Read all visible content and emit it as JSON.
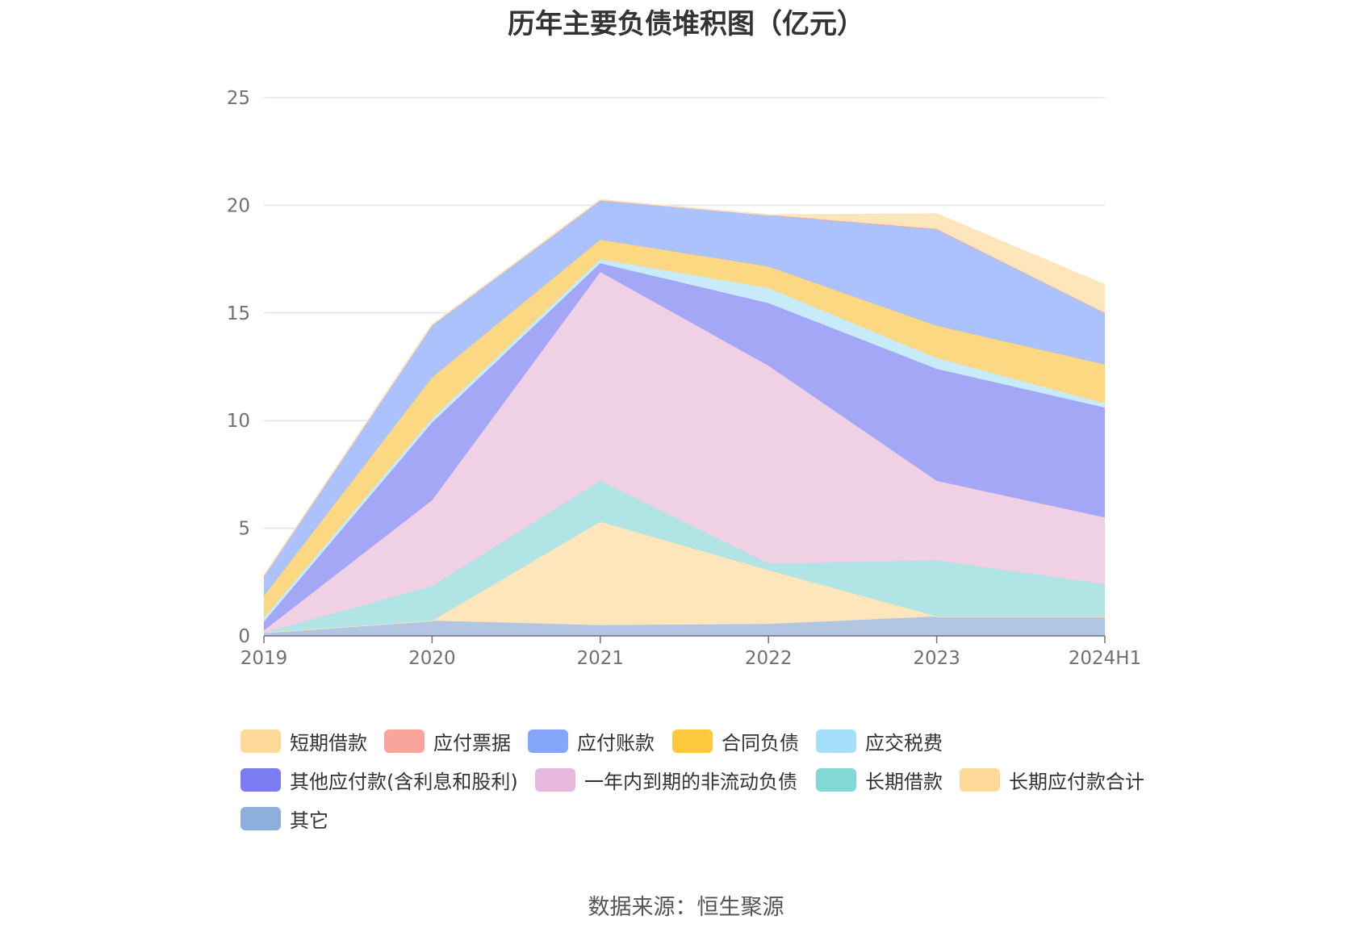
{
  "page": {
    "title": "历年主要负债堆积图（亿元）",
    "source": "数据来源：恒生聚源"
  },
  "chart_data": {
    "type": "area",
    "stacked": true,
    "title": "历年主要负债堆积图（亿元）",
    "categories": [
      "2019",
      "2020",
      "2021",
      "2022",
      "2023",
      "2024H1"
    ],
    "ylim": [
      0,
      25
    ],
    "yticks": [
      "0",
      "5",
      "10",
      "15",
      "20",
      "25"
    ],
    "grid": true,
    "legend_position": "bottom",
    "stack_order": [
      "其它",
      "短期借款",
      "长期借款",
      "一年内到期的非流动负债",
      "其他应付款(含利息和股利)",
      "应交税费",
      "合同负债",
      "应付账款",
      "应付票据",
      "长期应付款合计"
    ],
    "series": [
      {
        "name": "短期借款",
        "values": [
          0.0,
          0.0,
          4.8,
          2.5,
          0.0,
          0.0
        ],
        "color": "#fdd99a",
        "area_color": "#fde5b8"
      },
      {
        "name": "应付票据",
        "values": [
          0.05,
          0.05,
          0.05,
          0.0,
          0.0,
          0.0
        ],
        "color": "#f9a59b",
        "area_color": "#f9a59b"
      },
      {
        "name": "应付账款",
        "values": [
          0.9,
          2.4,
          1.8,
          2.4,
          4.5,
          2.4
        ],
        "color": "#86a6fb",
        "area_color": "#a8bffd"
      },
      {
        "name": "合同负债",
        "values": [
          1.0,
          1.9,
          0.9,
          1.0,
          1.5,
          1.8
        ],
        "color": "#fcc83d",
        "area_color": "#fdd67c"
      },
      {
        "name": "应交税费",
        "values": [
          0.2,
          0.2,
          0.2,
          0.7,
          0.5,
          0.2
        ],
        "color": "#a6dffa",
        "area_color": "#c4eaf9"
      },
      {
        "name": "其他应付款(含利息和股利)",
        "values": [
          0.4,
          3.6,
          0.4,
          2.9,
          5.2,
          5.1
        ],
        "color": "#7b7cf2",
        "area_color": "#9fa2f6"
      },
      {
        "name": "一年内到期的非流动负债",
        "values": [
          0.1,
          4.0,
          9.7,
          9.2,
          3.7,
          3.1
        ],
        "color": "#e6b8dc",
        "area_color": "#efcde3"
      },
      {
        "name": "长期借款",
        "values": [
          0.0,
          1.6,
          1.9,
          0.3,
          2.6,
          1.5
        ],
        "color": "#83d8d6",
        "area_color": "#ade4e4"
      },
      {
        "name": "长期应付款合计",
        "values": [
          0.0,
          0.0,
          0.0,
          0.0,
          0.7,
          1.3
        ],
        "color": "#fdd99a",
        "area_color": "#fde5b8"
      },
      {
        "name": "其它",
        "values": [
          0.15,
          0.7,
          0.5,
          0.55,
          0.9,
          0.9
        ],
        "color": "#8eaedc",
        "area_color": "#aec3e3"
      }
    ]
  }
}
